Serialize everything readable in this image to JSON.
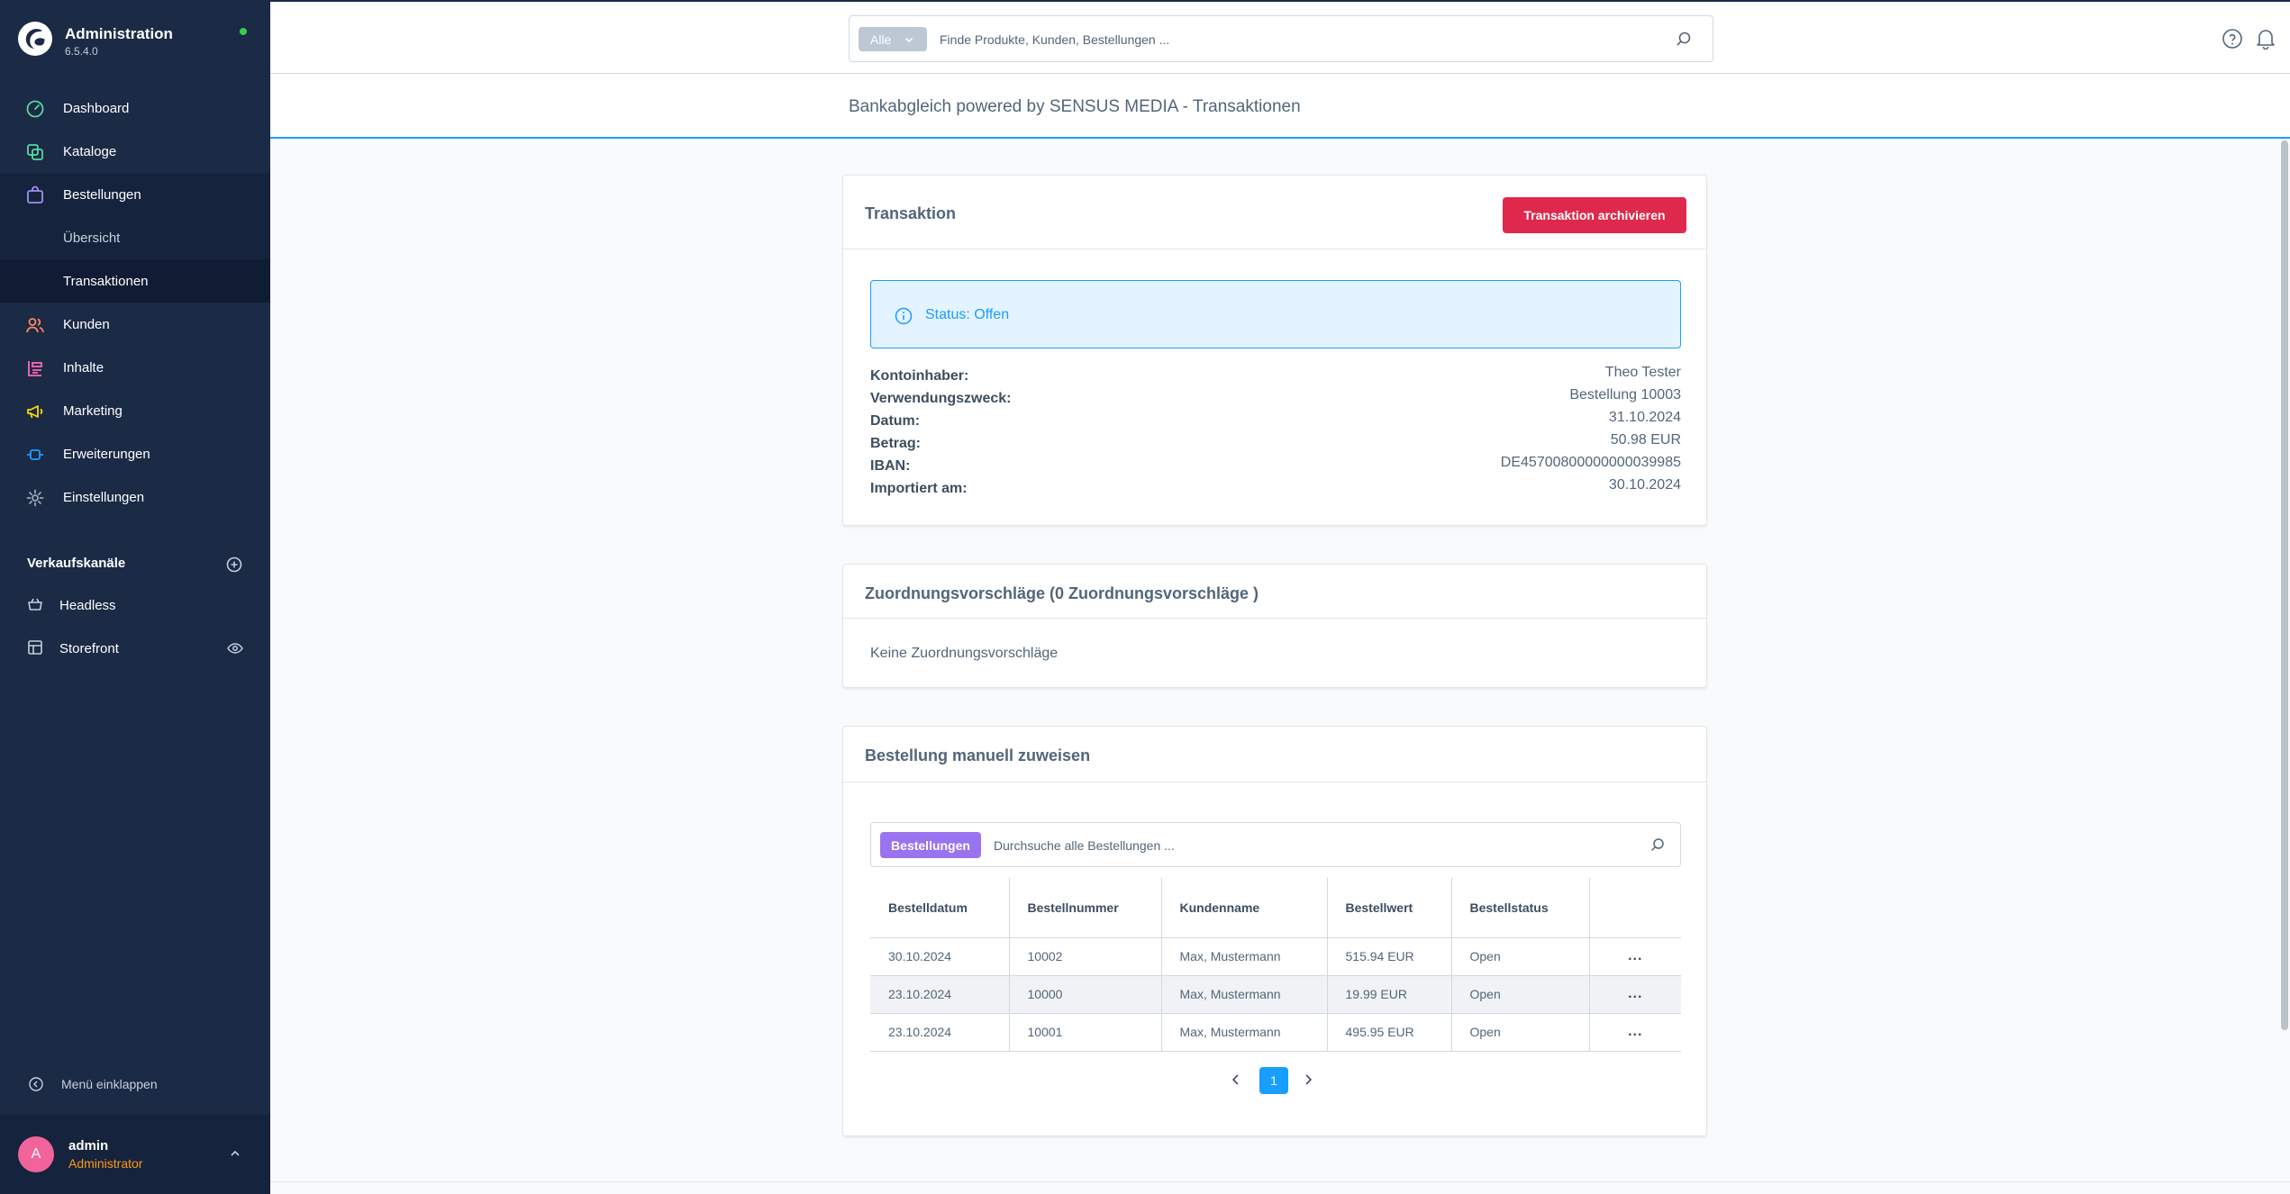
{
  "app": {
    "title": "Administration",
    "version": "6.5.4.0",
    "status_color": "#37d046",
    "accent_color": "#189eff",
    "danger_color": "#de294c",
    "sidebar_color": "#1b2a45"
  },
  "sidebar": {
    "items": [
      {
        "label": "Dashboard",
        "icon": "gauge-icon"
      },
      {
        "label": "Kataloge",
        "icon": "catalog-icon"
      },
      {
        "label": "Bestellungen",
        "icon": "shopping-bag-icon"
      },
      {
        "label": "Übersicht"
      },
      {
        "label": "Transaktionen"
      },
      {
        "label": "Kunden",
        "icon": "users-icon"
      },
      {
        "label": "Inhalte",
        "icon": "content-icon"
      },
      {
        "label": "Marketing",
        "icon": "megaphone-icon"
      },
      {
        "label": "Erweiterungen",
        "icon": "plug-icon"
      },
      {
        "label": "Einstellungen",
        "icon": "gear-icon"
      }
    ],
    "channels_heading": "Verkaufskanäle",
    "channels": [
      {
        "label": "Headless",
        "icon": "basket-icon"
      },
      {
        "label": "Storefront",
        "icon": "storefront-icon"
      }
    ],
    "collapse_label": "Menü einklappen",
    "user": {
      "initial": "A",
      "name": "admin",
      "role": "Administrator"
    }
  },
  "search": {
    "type_label": "Alle",
    "placeholder": "Finde Produkte, Kunden, Bestellungen ..."
  },
  "page": {
    "title": "Bankabgleich powered by SENSUS MEDIA - Transaktionen"
  },
  "transaction": {
    "title": "Transaktion",
    "archive_label": "Transaktion archivieren",
    "status": "Status: Offen",
    "details": [
      {
        "label": "Kontoinhaber:",
        "value": "Theo Tester"
      },
      {
        "label": "Verwendungszweck:",
        "value": "Bestellung 10003"
      },
      {
        "label": "Datum:",
        "value": "31.10.2024"
      },
      {
        "label": "Betrag:",
        "value": "50.98 EUR"
      },
      {
        "label": "IBAN:",
        "value": "DE45700800000000039985"
      },
      {
        "label": "Importiert am:",
        "value": "30.10.2024"
      }
    ]
  },
  "suggestions": {
    "title": "Zuordnungsvorschläge (0 Zuordnungsvorschläge )",
    "empty": "Keine Zuordnungsvorschläge"
  },
  "manual": {
    "title": "Bestellung manuell zuweisen",
    "search_type": "Bestellungen",
    "search_placeholder": "Durchsuche alle Bestellungen ...",
    "columns": [
      "Bestelldatum",
      "Bestellnummer",
      "Kundenname",
      "Bestellwert",
      "Bestellstatus"
    ],
    "rows": [
      {
        "date": "30.10.2024",
        "number": "10002",
        "customer": "Max, Mustermann",
        "value": "515.94 EUR",
        "status": "Open",
        "actions": "..."
      },
      {
        "date": "23.10.2024",
        "number": "10000",
        "customer": "Max, Mustermann",
        "value": "19.99 EUR",
        "status": "Open",
        "actions": "..."
      },
      {
        "date": "23.10.2024",
        "number": "10001",
        "customer": "Max, Mustermann",
        "value": "495.95 EUR",
        "status": "Open",
        "actions": "..."
      }
    ],
    "current_page": "1"
  }
}
